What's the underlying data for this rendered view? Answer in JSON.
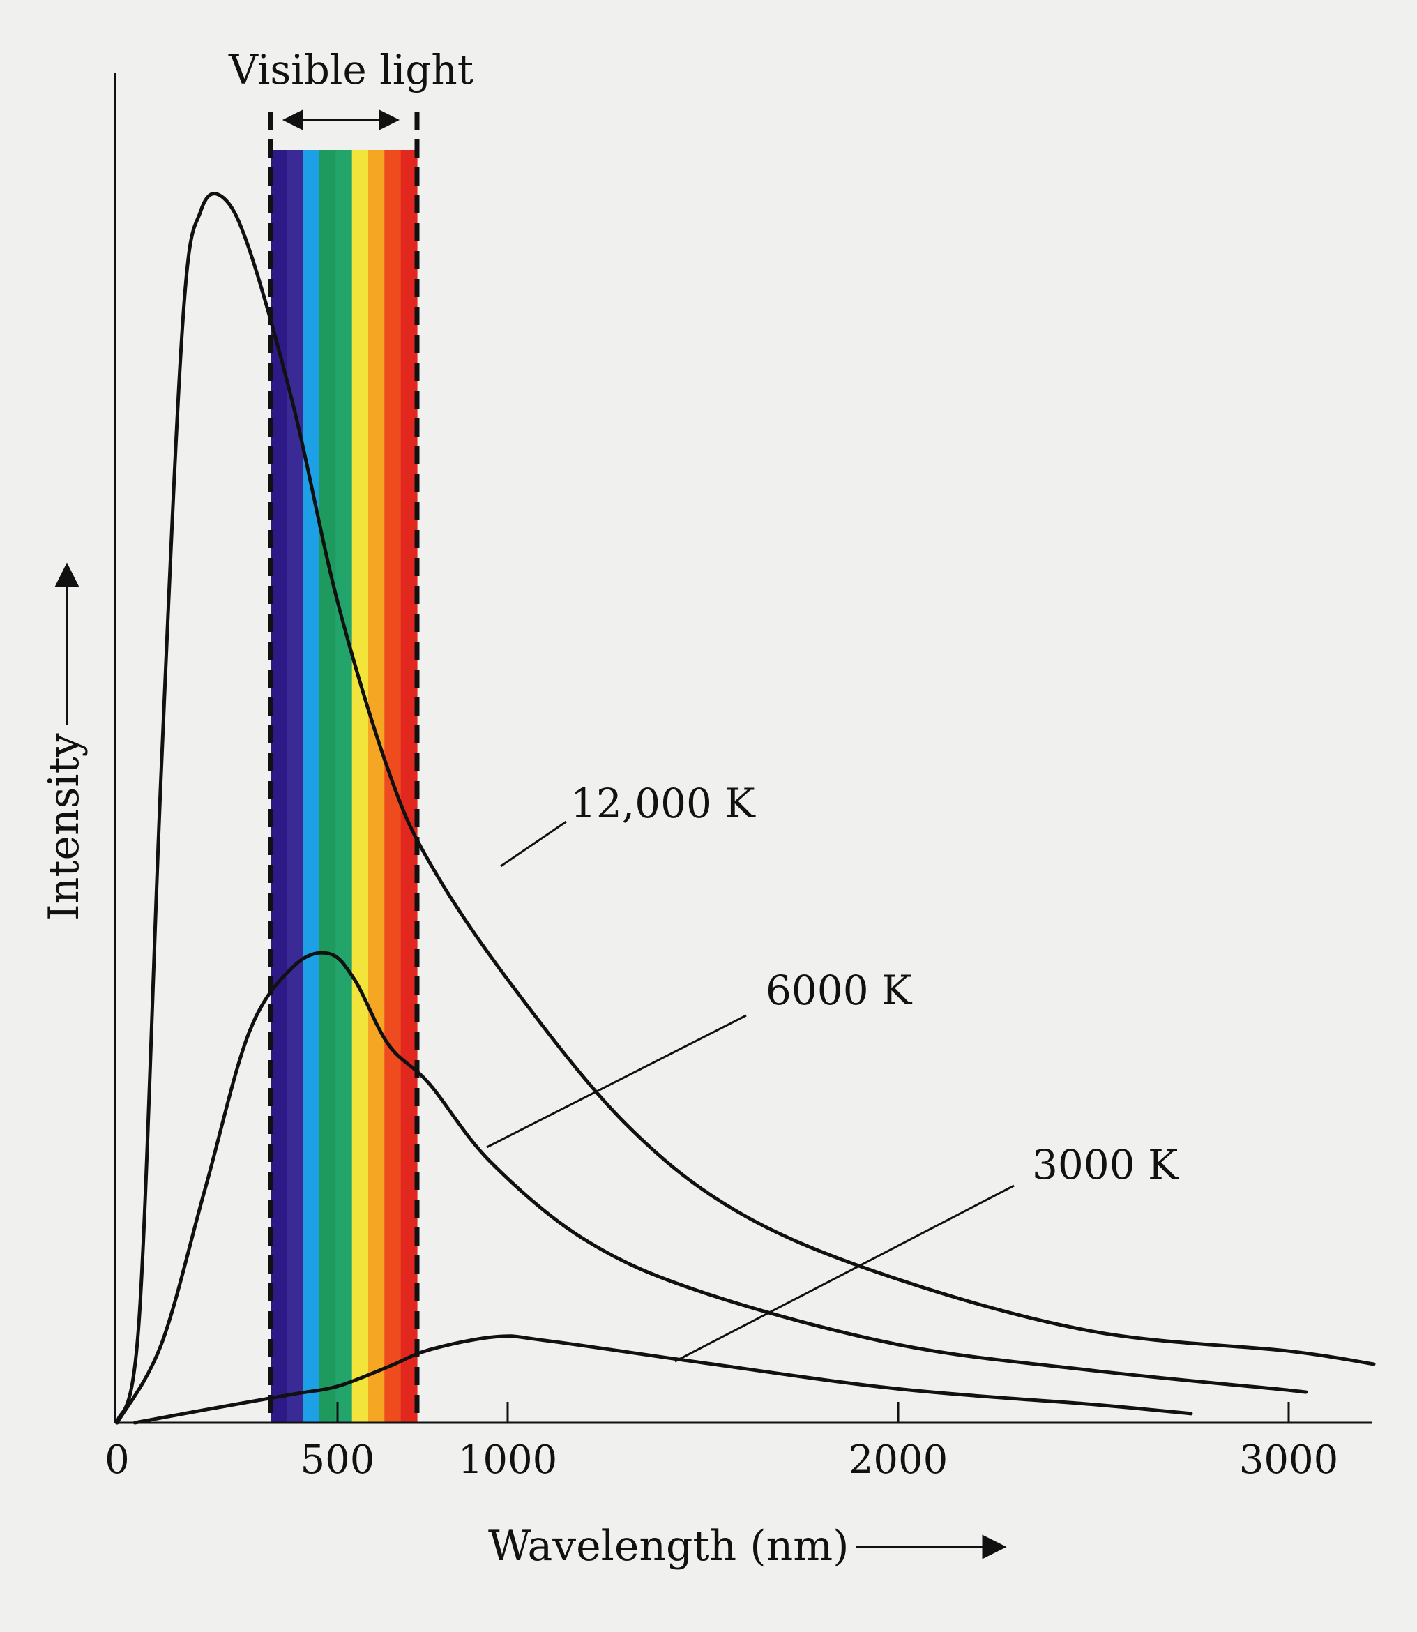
{
  "chart_data": {
    "type": "line",
    "title": "",
    "xlabel": "Wavelength (nm)",
    "ylabel": "Intensity",
    "xlim": [
      0,
      3200
    ],
    "ylim": [
      0,
      1
    ],
    "x_ticks": [
      0,
      500,
      1000,
      2000,
      3000
    ],
    "x_tick_labels": [
      "0",
      "500",
      "1000",
      "2000",
      "3000"
    ],
    "visible_band": {
      "label": "Visible light",
      "range_nm": [
        400,
        770
      ],
      "colors": [
        "#2e1a86",
        "#3a2a96",
        "#1ea0e6",
        "#1e9a5e",
        "#23a46a",
        "#f2e43a",
        "#f5a623",
        "#ee4b1e",
        "#e2281e"
      ]
    },
    "series": [
      {
        "name": "12,000 K",
        "label": "12,000 K",
        "temperature_K": 12000,
        "peak_wavelength_nm": 241,
        "peak_intensity": 0.94,
        "points": [
          [
            0,
            0
          ],
          [
            50,
            0.08
          ],
          [
            100,
            0.5
          ],
          [
            150,
            0.85
          ],
          [
            190,
            0.93
          ],
          [
            240,
            0.94
          ],
          [
            300,
            0.9
          ],
          [
            400,
            0.78
          ],
          [
            500,
            0.63
          ],
          [
            650,
            0.5
          ],
          [
            770,
            0.43
          ],
          [
            1000,
            0.34
          ],
          [
            1300,
            0.23
          ],
          [
            1600,
            0.16
          ],
          [
            2000,
            0.11
          ],
          [
            2500,
            0.07
          ],
          [
            3000,
            0.055
          ],
          [
            3200,
            0.045
          ]
        ]
      },
      {
        "name": "6000 K",
        "label": "6000 K",
        "temperature_K": 6000,
        "peak_wavelength_nm": 483,
        "peak_intensity": 0.36,
        "points": [
          [
            0,
            0
          ],
          [
            100,
            0.06
          ],
          [
            200,
            0.18
          ],
          [
            300,
            0.3
          ],
          [
            400,
            0.35
          ],
          [
            480,
            0.36
          ],
          [
            550,
            0.34
          ],
          [
            650,
            0.29
          ],
          [
            770,
            0.26
          ],
          [
            950,
            0.2
          ],
          [
            1200,
            0.14
          ],
          [
            1500,
            0.1
          ],
          [
            2000,
            0.06
          ],
          [
            2500,
            0.04
          ],
          [
            3000,
            0.025
          ],
          [
            3020,
            0.024
          ]
        ]
      },
      {
        "name": "3000 K",
        "label": "3000 K",
        "temperature_K": 3000,
        "peak_wavelength_nm": 966,
        "peak_intensity": 0.066,
        "points": [
          [
            40,
            0.0
          ],
          [
            200,
            0.01
          ],
          [
            400,
            0.022
          ],
          [
            500,
            0.028
          ],
          [
            650,
            0.043
          ],
          [
            770,
            0.056
          ],
          [
            966,
            0.066
          ],
          [
            1100,
            0.063
          ],
          [
            1500,
            0.046
          ],
          [
            2000,
            0.026
          ],
          [
            2500,
            0.014
          ],
          [
            2750,
            0.007
          ]
        ]
      }
    ]
  },
  "labels": {
    "visible_light": "Visible light",
    "intensity_axis": "Intensity",
    "wavelength_axis": "Wavelength (nm)",
    "curve_12000": "12,000 K",
    "curve_6000": "6000 K",
    "curve_3000": "3000 K"
  }
}
